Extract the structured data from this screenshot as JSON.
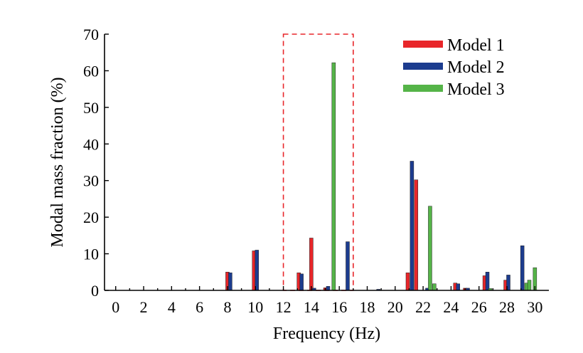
{
  "chart_data": {
    "type": "bar",
    "xlabel": "Frequency (Hz)",
    "ylabel": "Modal mass fraction (%)",
    "xlim": [
      -0.8,
      31
    ],
    "ylim": [
      0,
      70
    ],
    "xticks": [
      0,
      2,
      4,
      6,
      8,
      10,
      12,
      14,
      16,
      18,
      20,
      22,
      24,
      26,
      28,
      30
    ],
    "yticks": [
      0,
      10,
      20,
      30,
      40,
      50,
      60,
      70
    ],
    "grid": false,
    "legend_position": "top-right",
    "highlight_region": {
      "x": [
        12,
        17
      ],
      "y": [
        0,
        70
      ]
    },
    "series": [
      {
        "name": "Model 1",
        "color": "#e8262a",
        "points": [
          {
            "x": 8.0,
            "y": 5.0
          },
          {
            "x": 9.9,
            "y": 10.8
          },
          {
            "x": 13.1,
            "y": 4.8
          },
          {
            "x": 14.0,
            "y": 14.3
          },
          {
            "x": 15.0,
            "y": 0.7
          },
          {
            "x": 20.9,
            "y": 4.8
          },
          {
            "x": 21.5,
            "y": 30.2
          },
          {
            "x": 24.3,
            "y": 2.0
          },
          {
            "x": 25.0,
            "y": 0.6
          },
          {
            "x": 26.4,
            "y": 4.0
          },
          {
            "x": 27.9,
            "y": 2.8
          }
        ]
      },
      {
        "name": "Model 2",
        "color": "#1c3c8f",
        "points": [
          {
            "x": 8.2,
            "y": 4.8
          },
          {
            "x": 10.1,
            "y": 11.0
          },
          {
            "x": 13.3,
            "y": 4.5
          },
          {
            "x": 14.2,
            "y": 0.6
          },
          {
            "x": 15.2,
            "y": 1.1
          },
          {
            "x": 16.6,
            "y": 13.3
          },
          {
            "x": 18.8,
            "y": 0.3
          },
          {
            "x": 21.2,
            "y": 35.3
          },
          {
            "x": 22.3,
            "y": 0.6
          },
          {
            "x": 24.5,
            "y": 1.8
          },
          {
            "x": 25.2,
            "y": 0.6
          },
          {
            "x": 26.6,
            "y": 5.0
          },
          {
            "x": 28.1,
            "y": 4.2
          },
          {
            "x": 29.1,
            "y": 12.2
          }
        ]
      },
      {
        "name": "Model 3",
        "color": "#55b448",
        "points": [
          {
            "x": 15.6,
            "y": 62.2
          },
          {
            "x": 22.5,
            "y": 23.0
          },
          {
            "x": 22.8,
            "y": 1.8
          },
          {
            "x": 26.8,
            "y": 0.5
          },
          {
            "x": 29.4,
            "y": 2.0
          },
          {
            "x": 29.6,
            "y": 2.8
          },
          {
            "x": 30.0,
            "y": 6.2
          }
        ]
      }
    ]
  }
}
